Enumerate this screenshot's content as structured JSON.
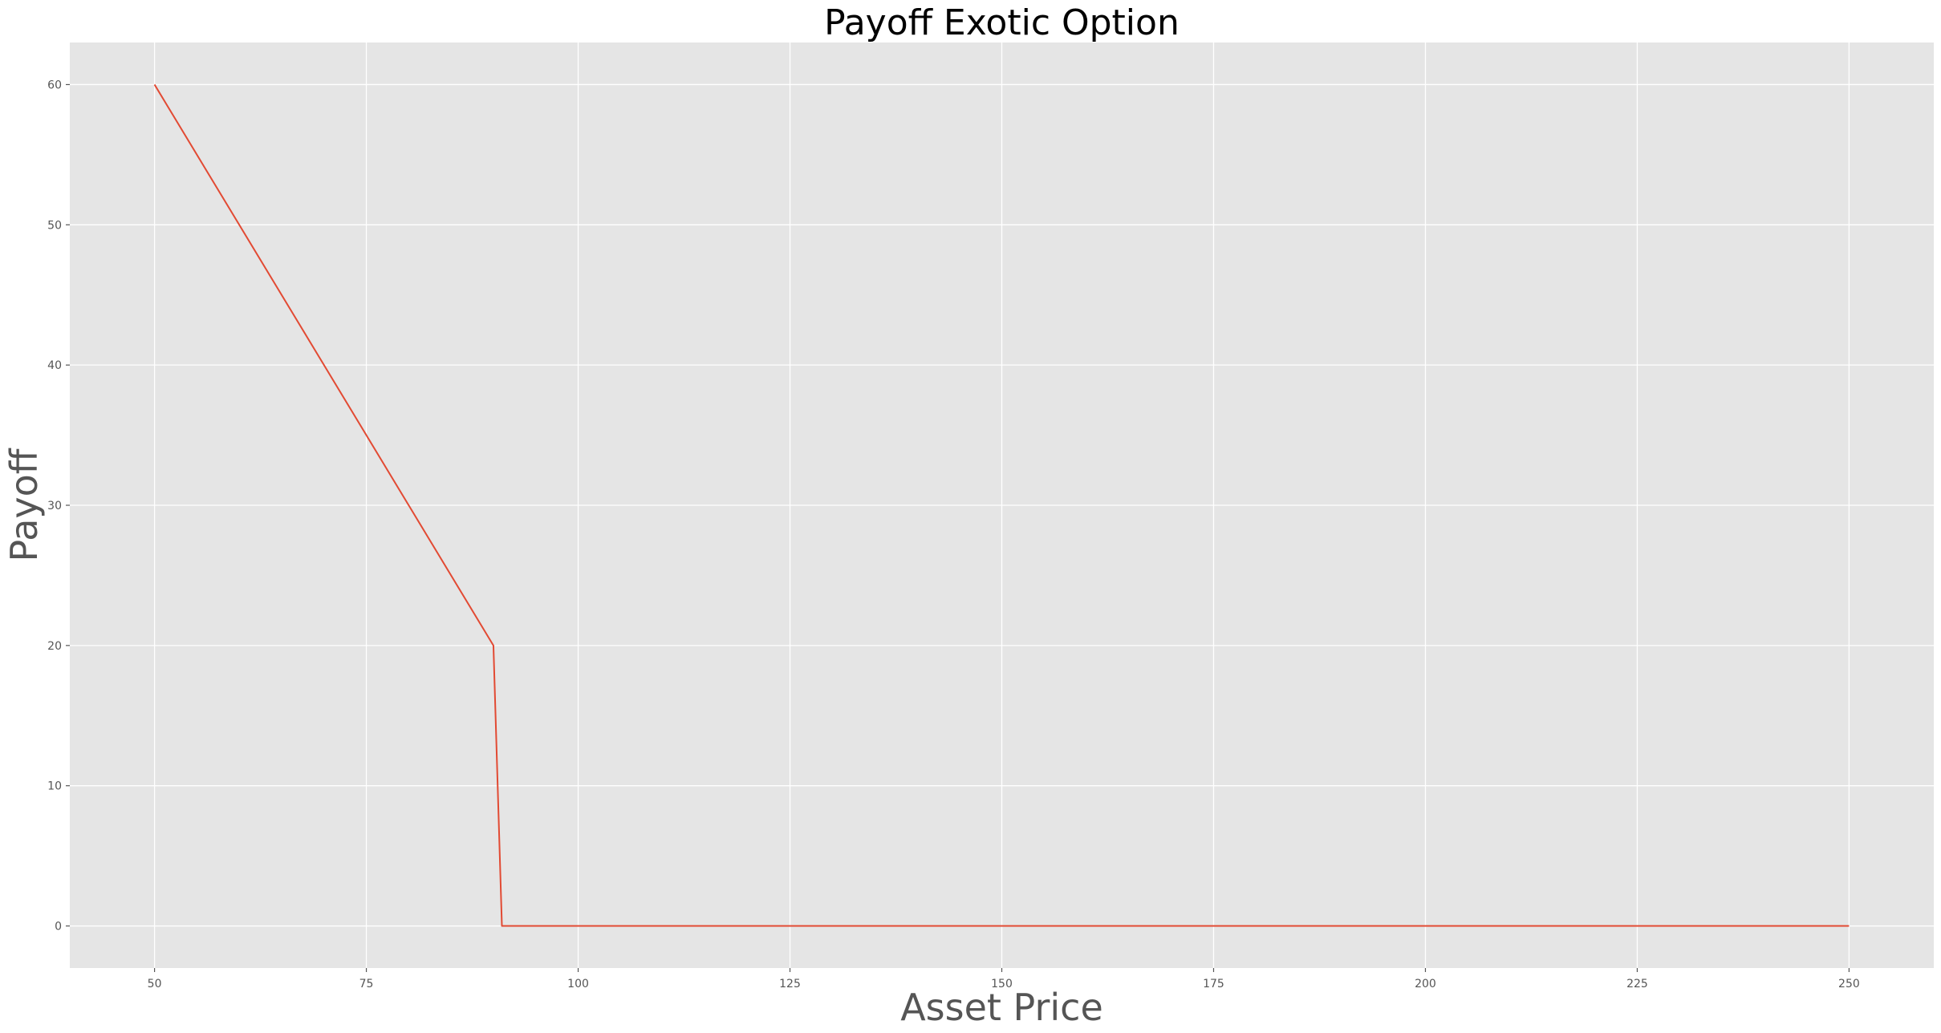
{
  "chart_data": {
    "type": "line",
    "title": "Payoff Exotic Option",
    "xlabel": "Asset Price",
    "ylabel": "Payoff",
    "xlim": [
      40,
      260
    ],
    "ylim": [
      -3,
      63
    ],
    "x_ticks": [
      50,
      75,
      100,
      125,
      150,
      175,
      200,
      225,
      250
    ],
    "y_ticks": [
      0,
      10,
      20,
      30,
      40,
      50,
      60
    ],
    "grid": true,
    "legend": "none",
    "style": {
      "plot_background": "#e5e5e5",
      "grid_color": "#ffffff",
      "line_color": "#e24a33"
    },
    "series": [
      {
        "x": [
          50,
          90,
          91,
          250
        ],
        "y": [
          60,
          20,
          0,
          0
        ]
      }
    ]
  }
}
